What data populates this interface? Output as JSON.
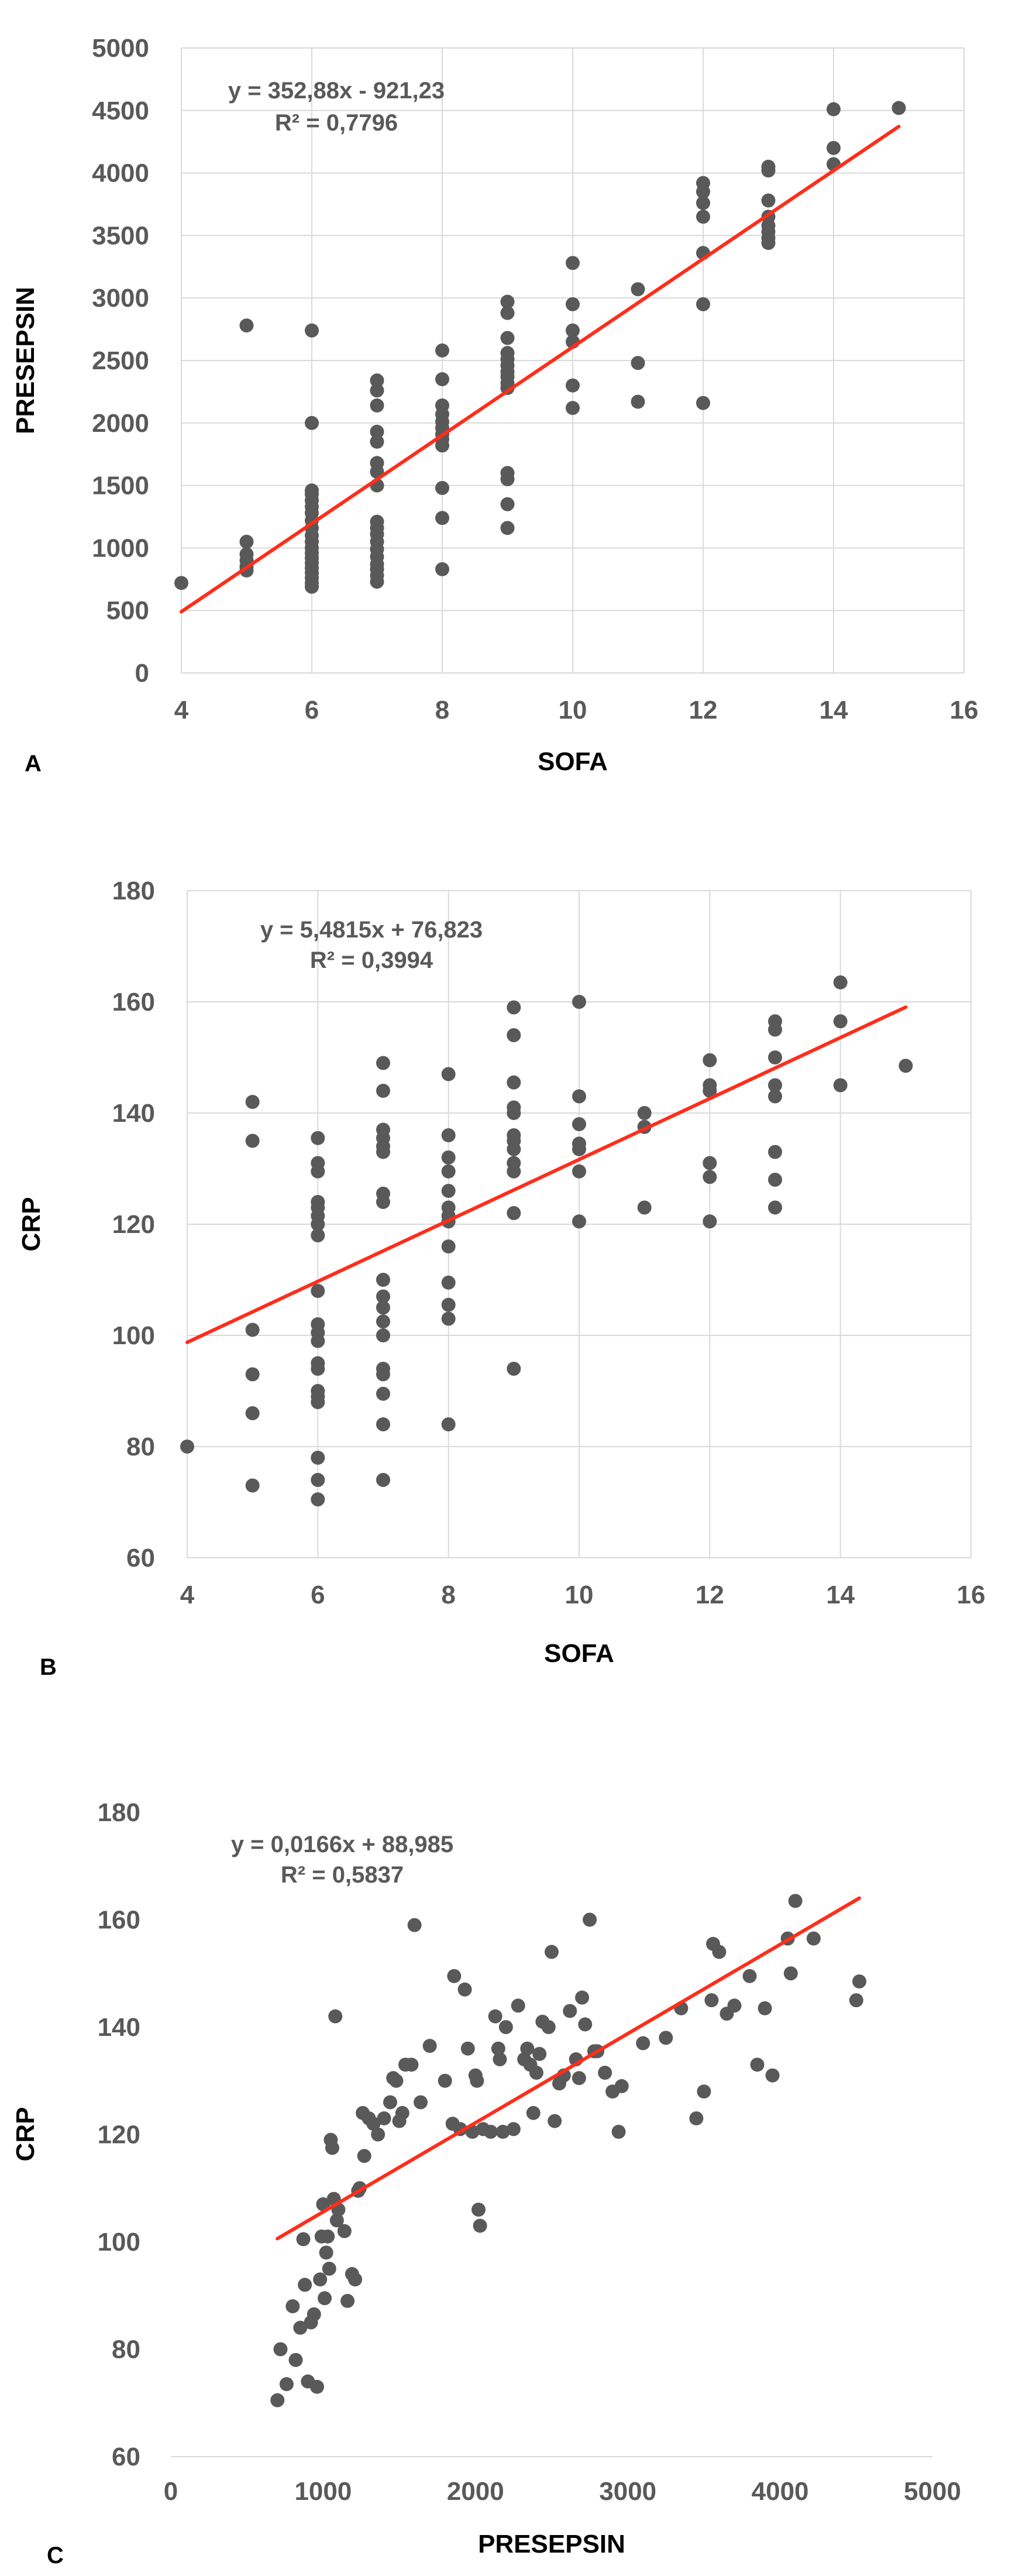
{
  "chart_data": [
    {
      "type": "scatter",
      "panel_label": "A",
      "xlabel": "SOFA",
      "ylabel": "PRESEPSIN",
      "xlim": [
        4,
        16
      ],
      "ylim": [
        0,
        5000
      ],
      "xticks": [
        4,
        6,
        8,
        10,
        12,
        14,
        16
      ],
      "yticks": [
        0,
        500,
        1000,
        1500,
        2000,
        2500,
        3000,
        3500,
        4000,
        4500,
        5000
      ],
      "grid": true,
      "point_color": "#595959",
      "trendline_color": "#ff2d1a",
      "equation": "y = 352,88x - 921,23",
      "r_squared": "R² = 0,7796",
      "trendline": {
        "slope": 352.88,
        "intercept": -921.23,
        "x_range": [
          4,
          15
        ]
      },
      "points": [
        [
          4,
          720
        ],
        [
          5,
          2780
        ],
        [
          5,
          1050
        ],
        [
          5,
          950
        ],
        [
          5,
          900
        ],
        [
          5,
          850
        ],
        [
          5,
          820
        ],
        [
          6,
          2740
        ],
        [
          6,
          2000
        ],
        [
          6,
          1460
        ],
        [
          6,
          1430
        ],
        [
          6,
          1380
        ],
        [
          6,
          1330
        ],
        [
          6,
          1280
        ],
        [
          6,
          1220
        ],
        [
          6,
          1160
        ],
        [
          6,
          1100
        ],
        [
          6,
          1050
        ],
        [
          6,
          1000
        ],
        [
          6,
          960
        ],
        [
          6,
          920
        ],
        [
          6,
          880
        ],
        [
          6,
          840
        ],
        [
          6,
          800
        ],
        [
          6,
          760
        ],
        [
          6,
          720
        ],
        [
          6,
          690
        ],
        [
          7,
          2340
        ],
        [
          7,
          2260
        ],
        [
          7,
          2140
        ],
        [
          7,
          1930
        ],
        [
          7,
          1850
        ],
        [
          7,
          1680
        ],
        [
          7,
          1610
        ],
        [
          7,
          1500
        ],
        [
          7,
          1210
        ],
        [
          7,
          1160
        ],
        [
          7,
          1110
        ],
        [
          7,
          1050
        ],
        [
          7,
          990
        ],
        [
          7,
          930
        ],
        [
          7,
          870
        ],
        [
          7,
          830
        ],
        [
          7,
          780
        ],
        [
          7,
          730
        ],
        [
          8,
          2580
        ],
        [
          8,
          2350
        ],
        [
          8,
          2140
        ],
        [
          8,
          2070
        ],
        [
          8,
          2010
        ],
        [
          8,
          1960
        ],
        [
          8,
          1910
        ],
        [
          8,
          1870
        ],
        [
          8,
          1820
        ],
        [
          8,
          1480
        ],
        [
          8,
          1240
        ],
        [
          8,
          830
        ],
        [
          9,
          2970
        ],
        [
          9,
          2880
        ],
        [
          9,
          2680
        ],
        [
          9,
          2560
        ],
        [
          9,
          2510
        ],
        [
          9,
          2460
        ],
        [
          9,
          2410
        ],
        [
          9,
          2370
        ],
        [
          9,
          2320
        ],
        [
          9,
          2280
        ],
        [
          9,
          1600
        ],
        [
          9,
          1550
        ],
        [
          9,
          1350
        ],
        [
          9,
          1160
        ],
        [
          10,
          3280
        ],
        [
          10,
          2950
        ],
        [
          10,
          2740
        ],
        [
          10,
          2650
        ],
        [
          10,
          2300
        ],
        [
          10,
          2120
        ],
        [
          11,
          3070
        ],
        [
          11,
          2480
        ],
        [
          11,
          2170
        ],
        [
          12,
          3920
        ],
        [
          12,
          3850
        ],
        [
          12,
          3760
        ],
        [
          12,
          3650
        ],
        [
          12,
          3360
        ],
        [
          12,
          2950
        ],
        [
          12,
          2160
        ],
        [
          13,
          4050
        ],
        [
          13,
          4020
        ],
        [
          13,
          3780
        ],
        [
          13,
          3650
        ],
        [
          13,
          3580
        ],
        [
          13,
          3530
        ],
        [
          13,
          3480
        ],
        [
          13,
          3440
        ],
        [
          14,
          4510
        ],
        [
          14,
          4200
        ],
        [
          14,
          4070
        ],
        [
          15,
          4520
        ]
      ]
    },
    {
      "type": "scatter",
      "panel_label": "B",
      "xlabel": "SOFA",
      "ylabel": "CRP",
      "xlim": [
        4,
        16
      ],
      "ylim": [
        60,
        180
      ],
      "xticks": [
        4,
        6,
        8,
        10,
        12,
        14,
        16
      ],
      "yticks": [
        60,
        80,
        100,
        120,
        140,
        160,
        180
      ],
      "grid": true,
      "point_color": "#595959",
      "trendline_color": "#ff2d1a",
      "equation": "y = 5,4815x + 76,823",
      "r_squared": "R² = 0,3994",
      "trendline": {
        "slope": 5.4815,
        "intercept": 76.823,
        "x_range": [
          4,
          15
        ]
      },
      "points": [
        [
          4,
          80
        ],
        [
          5,
          142
        ],
        [
          5,
          135
        ],
        [
          5,
          101
        ],
        [
          5,
          93
        ],
        [
          5,
          86
        ],
        [
          5,
          73
        ],
        [
          6,
          135.5
        ],
        [
          6,
          131
        ],
        [
          6,
          129.5
        ],
        [
          6,
          124
        ],
        [
          6,
          123
        ],
        [
          6,
          121.5
        ],
        [
          6,
          120
        ],
        [
          6,
          118
        ],
        [
          6,
          108
        ],
        [
          6,
          102
        ],
        [
          6,
          100.5
        ],
        [
          6,
          99
        ],
        [
          6,
          95
        ],
        [
          6,
          94
        ],
        [
          6,
          90
        ],
        [
          6,
          89
        ],
        [
          6,
          88
        ],
        [
          6,
          78
        ],
        [
          6,
          74
        ],
        [
          6,
          70.5
        ],
        [
          7,
          149
        ],
        [
          7,
          144
        ],
        [
          7,
          137
        ],
        [
          7,
          135.5
        ],
        [
          7,
          134
        ],
        [
          7,
          133
        ],
        [
          7,
          125.5
        ],
        [
          7,
          124
        ],
        [
          7,
          110
        ],
        [
          7,
          107
        ],
        [
          7,
          105
        ],
        [
          7,
          102.5
        ],
        [
          7,
          100
        ],
        [
          7,
          94
        ],
        [
          7,
          93
        ],
        [
          7,
          89.5
        ],
        [
          7,
          84
        ],
        [
          7,
          74
        ],
        [
          8,
          147
        ],
        [
          8,
          136
        ],
        [
          8,
          132
        ],
        [
          8,
          129.5
        ],
        [
          8,
          126
        ],
        [
          8,
          123
        ],
        [
          8,
          121.5
        ],
        [
          8,
          120.5
        ],
        [
          8,
          116
        ],
        [
          8,
          109.5
        ],
        [
          8,
          105.5
        ],
        [
          8,
          103
        ],
        [
          8,
          84
        ],
        [
          9,
          159
        ],
        [
          9,
          154
        ],
        [
          9,
          145.5
        ],
        [
          9,
          141
        ],
        [
          9,
          140
        ],
        [
          9,
          136
        ],
        [
          9,
          135
        ],
        [
          9,
          133.5
        ],
        [
          9,
          131
        ],
        [
          9,
          129.5
        ],
        [
          9,
          122
        ],
        [
          9,
          94
        ],
        [
          10,
          160
        ],
        [
          10,
          143
        ],
        [
          10,
          138
        ],
        [
          10,
          134.5
        ],
        [
          10,
          133.5
        ],
        [
          10,
          129.5
        ],
        [
          10,
          120.5
        ],
        [
          11,
          140
        ],
        [
          11,
          137.5
        ],
        [
          11,
          123
        ],
        [
          12,
          149.5
        ],
        [
          12,
          145
        ],
        [
          12,
          144
        ],
        [
          12,
          131
        ],
        [
          12,
          128.5
        ],
        [
          12,
          120.5
        ],
        [
          13,
          156.5
        ],
        [
          13,
          155
        ],
        [
          13,
          150
        ],
        [
          13,
          145
        ],
        [
          13,
          143
        ],
        [
          13,
          133
        ],
        [
          13,
          128
        ],
        [
          13,
          123
        ],
        [
          14,
          163.5
        ],
        [
          14,
          156.5
        ],
        [
          14,
          145
        ],
        [
          15,
          148.5
        ]
      ]
    },
    {
      "type": "scatter",
      "panel_label": "C",
      "xlabel": "PRESEPSIN",
      "ylabel": "CRP",
      "xlim": [
        0,
        5000
      ],
      "ylim": [
        60,
        180
      ],
      "xticks": [
        0,
        1000,
        2000,
        3000,
        4000,
        5000
      ],
      "yticks": [
        60,
        80,
        100,
        120,
        140,
        160,
        180
      ],
      "grid": false,
      "point_color": "#595959",
      "trendline_color": "#ff2d1a",
      "equation": "y = 0,0166x + 88,985",
      "r_squared": "R² = 0,5837",
      "trendline": {
        "slope": 0.0166,
        "intercept": 88.985,
        "x_range": [
          700,
          4520
        ]
      },
      "points": [
        [
          700,
          70.5
        ],
        [
          720,
          80
        ],
        [
          760,
          73.5
        ],
        [
          800,
          88
        ],
        [
          820,
          78
        ],
        [
          850,
          84
        ],
        [
          870,
          100.5
        ],
        [
          880,
          92
        ],
        [
          900,
          74
        ],
        [
          920,
          85
        ],
        [
          940,
          86.5
        ],
        [
          960,
          73
        ],
        [
          980,
          93
        ],
        [
          990,
          101
        ],
        [
          1000,
          107
        ],
        [
          1010,
          89.5
        ],
        [
          1020,
          98
        ],
        [
          1030,
          101
        ],
        [
          1040,
          95
        ],
        [
          1050,
          119
        ],
        [
          1060,
          117.5
        ],
        [
          1070,
          108
        ],
        [
          1080,
          142
        ],
        [
          1090,
          104
        ],
        [
          1100,
          106
        ],
        [
          1140,
          102
        ],
        [
          1160,
          89
        ],
        [
          1190,
          94
        ],
        [
          1210,
          93
        ],
        [
          1230,
          109.5
        ],
        [
          1240,
          110
        ],
        [
          1260,
          124
        ],
        [
          1270,
          116
        ],
        [
          1300,
          123
        ],
        [
          1330,
          122
        ],
        [
          1360,
          120
        ],
        [
          1400,
          123
        ],
        [
          1440,
          126
        ],
        [
          1460,
          130.5
        ],
        [
          1480,
          130
        ],
        [
          1500,
          122.5
        ],
        [
          1520,
          124
        ],
        [
          1540,
          133
        ],
        [
          1580,
          133
        ],
        [
          1600,
          159
        ],
        [
          1640,
          126
        ],
        [
          1700,
          136.5
        ],
        [
          1800,
          130
        ],
        [
          1850,
          122
        ],
        [
          1860,
          149.5
        ],
        [
          1900,
          121
        ],
        [
          1930,
          147
        ],
        [
          1950,
          136
        ],
        [
          1980,
          120.5
        ],
        [
          2000,
          131
        ],
        [
          2010,
          130
        ],
        [
          2020,
          106
        ],
        [
          2030,
          103
        ],
        [
          2050,
          121
        ],
        [
          2100,
          120.5
        ],
        [
          2130,
          142
        ],
        [
          2150,
          136
        ],
        [
          2160,
          134
        ],
        [
          2180,
          120.5
        ],
        [
          2200,
          140
        ],
        [
          2250,
          121
        ],
        [
          2280,
          144
        ],
        [
          2320,
          134
        ],
        [
          2340,
          136
        ],
        [
          2360,
          133
        ],
        [
          2380,
          124
        ],
        [
          2400,
          131.5
        ],
        [
          2420,
          135
        ],
        [
          2440,
          141
        ],
        [
          2480,
          140
        ],
        [
          2500,
          154
        ],
        [
          2520,
          122.5
        ],
        [
          2550,
          129.5
        ],
        [
          2580,
          131
        ],
        [
          2620,
          143
        ],
        [
          2660,
          134
        ],
        [
          2680,
          130.5
        ],
        [
          2700,
          145.5
        ],
        [
          2720,
          140.5
        ],
        [
          2750,
          160
        ],
        [
          2780,
          135.5
        ],
        [
          2800,
          135.5
        ],
        [
          2850,
          131.5
        ],
        [
          2900,
          128
        ],
        [
          2940,
          120.5
        ],
        [
          2960,
          129
        ],
        [
          3100,
          137
        ],
        [
          3250,
          138
        ],
        [
          3350,
          143.5
        ],
        [
          3450,
          123
        ],
        [
          3500,
          128
        ],
        [
          3550,
          145
        ],
        [
          3560,
          155.5
        ],
        [
          3600,
          154
        ],
        [
          3650,
          142.5
        ],
        [
          3700,
          144
        ],
        [
          3800,
          149.5
        ],
        [
          3850,
          133
        ],
        [
          3900,
          143.5
        ],
        [
          3950,
          131
        ],
        [
          4050,
          156.5
        ],
        [
          4070,
          150
        ],
        [
          4100,
          163.5
        ],
        [
          4220,
          156.5
        ],
        [
          4500,
          145
        ],
        [
          4520,
          148.5
        ]
      ]
    }
  ]
}
